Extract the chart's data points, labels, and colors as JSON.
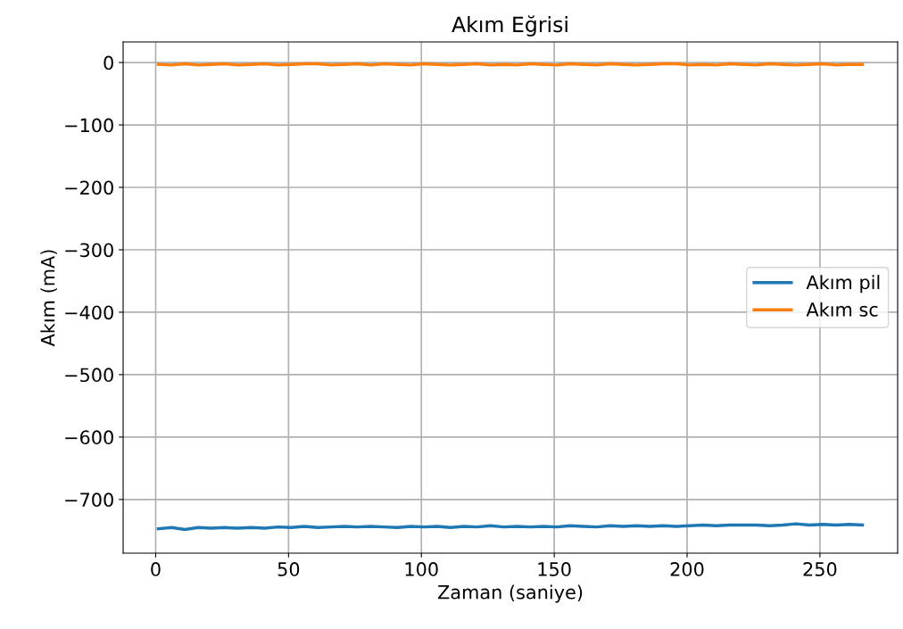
{
  "chart_data": {
    "type": "line",
    "title": "Akım Eğrisi",
    "xlabel": "Zaman (saniye)",
    "ylabel": "Akım (mA)",
    "x": [
      1,
      6,
      11,
      16,
      21,
      26,
      31,
      36,
      41,
      46,
      51,
      56,
      61,
      66,
      71,
      76,
      81,
      86,
      91,
      96,
      101,
      106,
      111,
      116,
      121,
      126,
      131,
      136,
      141,
      146,
      151,
      156,
      161,
      166,
      171,
      176,
      181,
      186,
      191,
      196,
      201,
      206,
      211,
      216,
      221,
      226,
      231,
      236,
      241,
      246,
      251,
      256,
      261,
      266
    ],
    "series": [
      {
        "name": "Akım pil",
        "color": "#1f77b4",
        "values": [
          -747,
          -745,
          -748,
          -745,
          -746,
          -745,
          -746,
          -745,
          -746,
          -744,
          -745,
          -743,
          -745,
          -744,
          -743,
          -744,
          -743,
          -744,
          -745,
          -743,
          -744,
          -743,
          -745,
          -743,
          -744,
          -742,
          -744,
          -743,
          -744,
          -743,
          -744,
          -742,
          -743,
          -744,
          -742,
          -743,
          -742,
          -743,
          -742,
          -743,
          -742,
          -741,
          -742,
          -741,
          -741,
          -741,
          -742,
          -741,
          -739,
          -741,
          -740,
          -741,
          -740,
          -741
        ]
      },
      {
        "name": "Akım sc",
        "color": "#ff7f0e",
        "values": [
          -3,
          -4,
          -2,
          -4,
          -3,
          -2,
          -4,
          -3,
          -2,
          -4,
          -3,
          -2,
          -2,
          -4,
          -3,
          -2,
          -4,
          -2,
          -3,
          -4,
          -2,
          -3,
          -4,
          -3,
          -2,
          -4,
          -3,
          -4,
          -2,
          -3,
          -4,
          -2,
          -3,
          -4,
          -2,
          -3,
          -4,
          -3,
          -2,
          -2,
          -4,
          -3,
          -4,
          -2,
          -3,
          -4,
          -2,
          -3,
          -4,
          -3,
          -2,
          -4,
          -3,
          -3
        ]
      }
    ],
    "xlim": [
      -12.25,
      279.25
    ],
    "ylim": [
      -786,
      33
    ],
    "xticks": [
      0,
      50,
      100,
      150,
      200,
      250
    ],
    "yticks": [
      {
        "value": 0,
        "label": "0"
      },
      {
        "value": -100,
        "label": "−100"
      },
      {
        "value": -200,
        "label": "−200"
      },
      {
        "value": -300,
        "label": "−300"
      },
      {
        "value": -400,
        "label": "−400"
      },
      {
        "value": -500,
        "label": "−500"
      },
      {
        "value": -600,
        "label": "−600"
      },
      {
        "value": -700,
        "label": "−700"
      }
    ],
    "grid": true,
    "legend": "center right",
    "line_style": "solid",
    "marker": "none"
  }
}
